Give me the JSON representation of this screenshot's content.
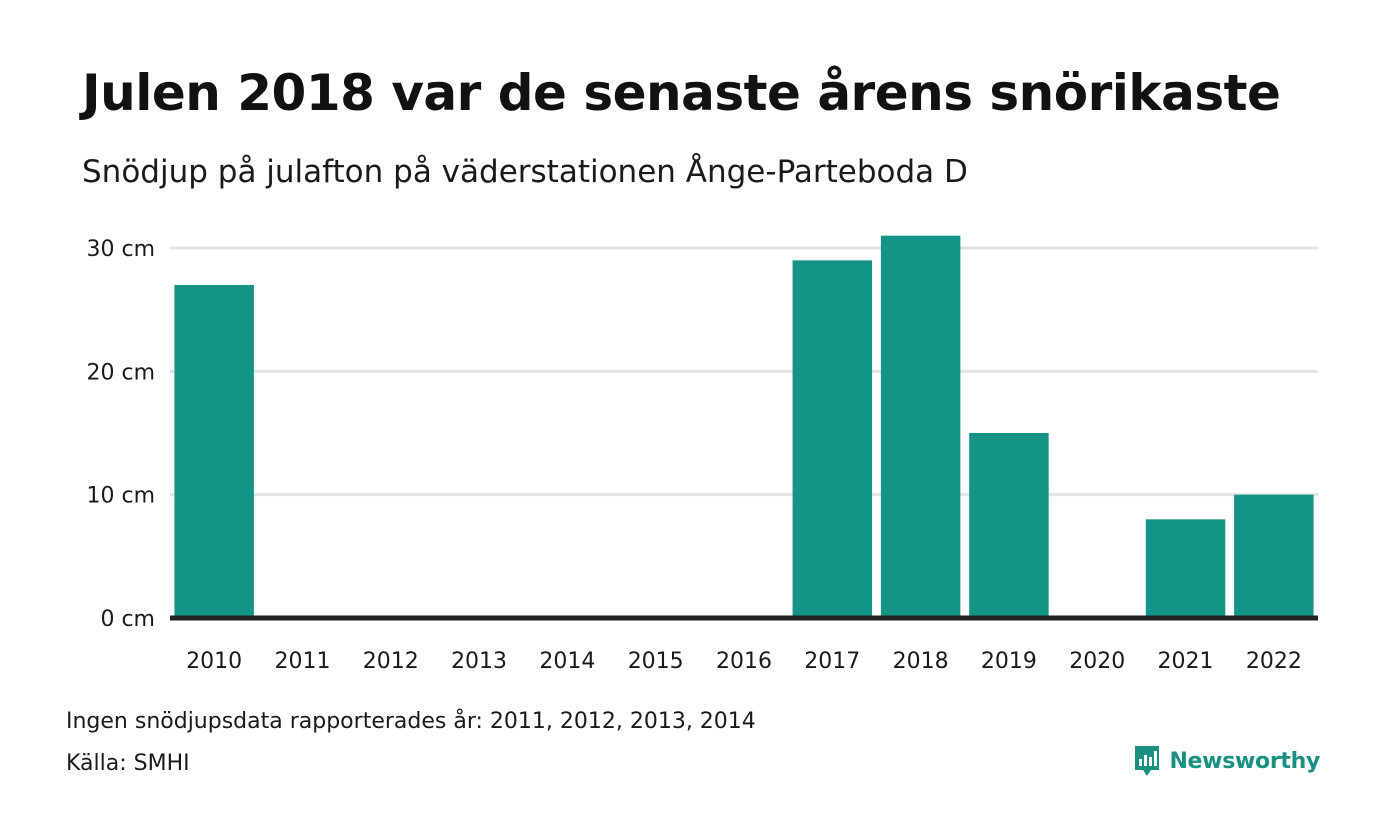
{
  "header": {
    "title": "Julen 2018 var de senaste årens snörikaste",
    "subtitle": "Snödjup på julafton på väderstationen Ånge-Parteboda D"
  },
  "footer": {
    "note": "Ingen snödjupsdata rapporterades år: 2011, 2012, 2013, 2014",
    "source": "Källa: SMHI",
    "brand": "Newsworthy"
  },
  "colors": {
    "bar": "#139486",
    "grid": "#e3e3e3",
    "baseline": "#222222",
    "brand": "#1a9080"
  },
  "chart_data": {
    "type": "bar",
    "title": "Julen 2018 var de senaste årens snörikaste",
    "subtitle": "Snödjup på julafton på väderstationen Ånge-Parteboda D",
    "categories": [
      "2010",
      "2011",
      "2012",
      "2013",
      "2014",
      "2015",
      "2016",
      "2017",
      "2018",
      "2019",
      "2020",
      "2021",
      "2022"
    ],
    "values": [
      27,
      null,
      null,
      null,
      null,
      0,
      0,
      29,
      31,
      15,
      0,
      8,
      10
    ],
    "unit": "cm",
    "yticks": [
      0,
      10,
      20,
      30
    ],
    "ytick_labels": [
      "0 cm",
      "10 cm",
      "20 cm",
      "30 cm"
    ],
    "ylim": [
      0,
      30
    ],
    "grid": true,
    "legend": "none"
  }
}
